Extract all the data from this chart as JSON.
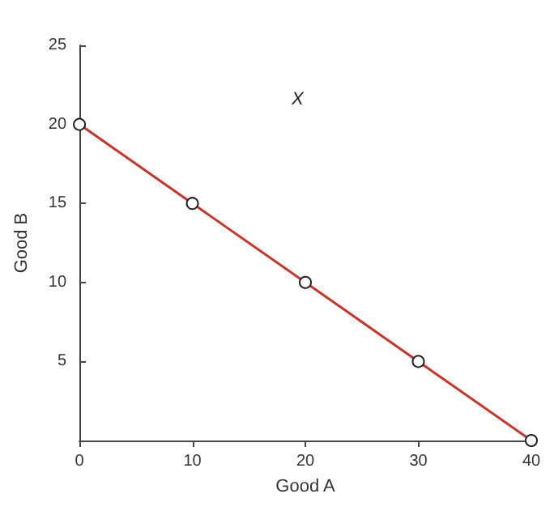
{
  "chart_data": {
    "type": "line",
    "xlabel": "Good A",
    "ylabel": "Good B",
    "x": [
      0,
      10,
      20,
      30,
      40
    ],
    "series": [
      {
        "color": "#c8362a",
        "values": [
          20,
          15,
          10,
          5,
          0
        ]
      }
    ],
    "xlim": [
      0,
      40
    ],
    "xticks": [
      0,
      10,
      20,
      30,
      40
    ],
    "ylim": [
      0,
      25
    ],
    "yticks": [
      5,
      10,
      15,
      20,
      25
    ],
    "annotations": [
      "X"
    ],
    "marker": "circle",
    "line_style": "solid",
    "grid": false
  }
}
